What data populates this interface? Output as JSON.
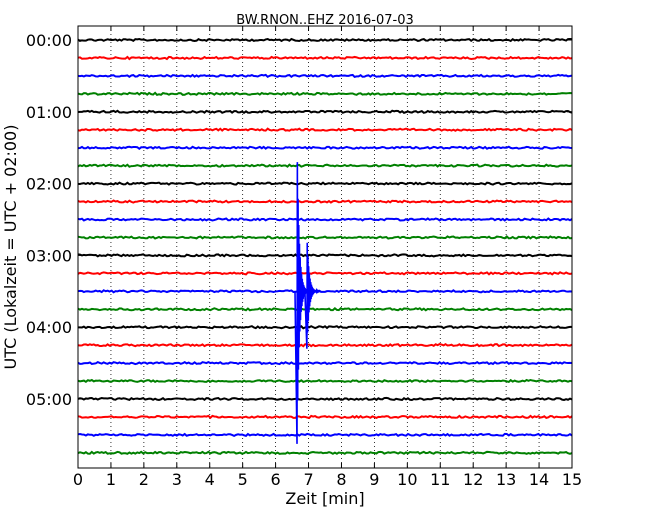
{
  "chart_data": {
    "type": "line",
    "title": "BW.RNON..EHZ 2016-07-03",
    "xlabel": "Zeit  [min]",
    "ylabel": "UTC (Lokalzeit = UTC + 02:00)",
    "xlim": [
      0,
      15
    ],
    "x_ticks": [
      "0",
      "1",
      "2",
      "3",
      "4",
      "5",
      "6",
      "7",
      "8",
      "9",
      "10",
      "11",
      "12",
      "13",
      "14",
      "15"
    ],
    "y_tick_labels": [
      "00:00",
      "01:00",
      "02:00",
      "03:00",
      "04:00",
      "05:00"
    ],
    "trace_interval_min": 15,
    "grid": "vertical dotted",
    "colors": [
      "#000000",
      "#ff0000",
      "#0000ff",
      "#008000"
    ],
    "traces": [
      {
        "start": "00:00",
        "color": "#000000"
      },
      {
        "start": "00:15",
        "color": "#ff0000"
      },
      {
        "start": "00:30",
        "color": "#0000ff"
      },
      {
        "start": "00:45",
        "color": "#008000"
      },
      {
        "start": "01:00",
        "color": "#000000"
      },
      {
        "start": "01:15",
        "color": "#ff0000"
      },
      {
        "start": "01:30",
        "color": "#0000ff"
      },
      {
        "start": "01:45",
        "color": "#008000"
      },
      {
        "start": "02:00",
        "color": "#000000"
      },
      {
        "start": "02:15",
        "color": "#ff0000"
      },
      {
        "start": "02:30",
        "color": "#0000ff"
      },
      {
        "start": "02:45",
        "color": "#008000"
      },
      {
        "start": "03:00",
        "color": "#000000"
      },
      {
        "start": "03:15",
        "color": "#ff0000"
      },
      {
        "start": "03:30",
        "color": "#0000ff"
      },
      {
        "start": "03:45",
        "color": "#008000"
      },
      {
        "start": "04:00",
        "color": "#000000"
      },
      {
        "start": "04:15",
        "color": "#ff0000"
      },
      {
        "start": "04:30",
        "color": "#0000ff"
      },
      {
        "start": "04:45",
        "color": "#008000"
      },
      {
        "start": "05:00",
        "color": "#000000"
      },
      {
        "start": "05:15",
        "color": "#ff0000"
      },
      {
        "start": "05:30",
        "color": "#0000ff"
      },
      {
        "start": "05:45",
        "color": "#008000"
      }
    ],
    "events": [
      {
        "trace": "03:30",
        "time_min": 6.65,
        "peak_amplitude": 8.5
      },
      {
        "trace": "03:30",
        "time_min": 6.95,
        "peak_amplitude": 3.2
      }
    ]
  }
}
